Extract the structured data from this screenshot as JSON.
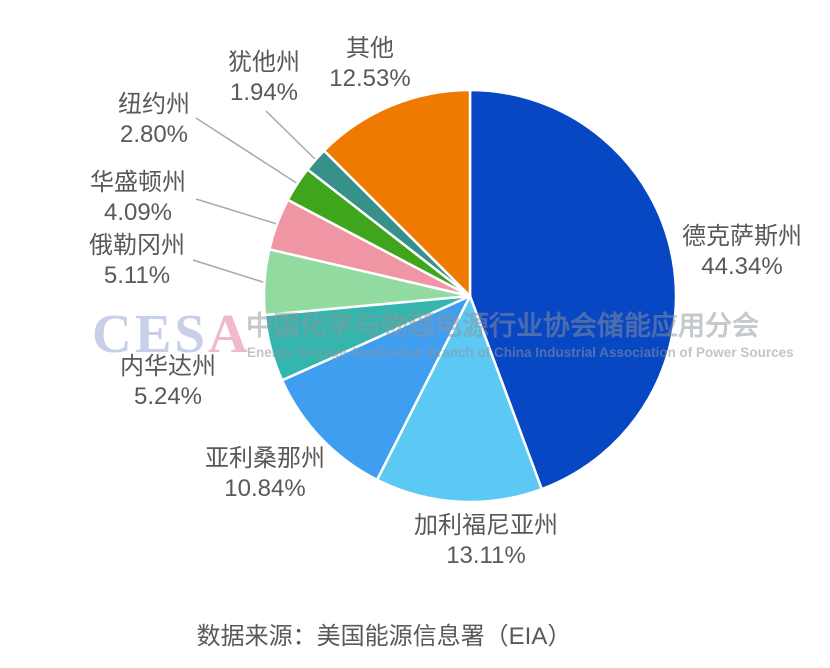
{
  "watermark": {
    "logo_prefix": "CES",
    "logo_suffix": "A",
    "cn_text": "中国化学与物理电源行业协会储能应用分会",
    "en_text": "Energy Storage Application Branch of China Industrial Association of Power Sources"
  },
  "source_note": "数据来源：美国能源信息署（EIA）",
  "chart_data": {
    "type": "pie",
    "title": "",
    "unit": "%",
    "start_angle": "12 o'clock",
    "direction": "clockwise",
    "legend": "none",
    "label_style": "outside, small slices use gray leader lines",
    "slices": [
      {
        "key": "texas",
        "name": "德克萨斯州",
        "value": 44.34,
        "pct_label": "44.34%",
        "color": "#0847C4"
      },
      {
        "key": "california",
        "name": "加利福尼亚州",
        "value": 13.11,
        "pct_label": "13.11%",
        "color": "#5CC9F4"
      },
      {
        "key": "arizona",
        "name": "亚利桑那州",
        "value": 10.84,
        "pct_label": "10.84%",
        "color": "#3F9EF0"
      },
      {
        "key": "nevada",
        "name": "内华达州",
        "value": 5.24,
        "pct_label": "5.24%",
        "color": "#34B6AE"
      },
      {
        "key": "oregon",
        "name": "俄勒冈州",
        "value": 5.11,
        "pct_label": "5.11%",
        "color": "#92DBA0"
      },
      {
        "key": "washington",
        "name": "华盛顿州",
        "value": 4.09,
        "pct_label": "4.09%",
        "color": "#EF95A4"
      },
      {
        "key": "new-york",
        "name": "纽约州",
        "value": 2.8,
        "pct_label": "2.80%",
        "color": "#3EA51C"
      },
      {
        "key": "utah",
        "name": "犹他州",
        "value": 1.94,
        "pct_label": "1.94%",
        "color": "#38908B"
      },
      {
        "key": "other",
        "name": "其他",
        "value": 12.53,
        "pct_label": "12.53%",
        "color": "#EE7A02"
      }
    ]
  }
}
